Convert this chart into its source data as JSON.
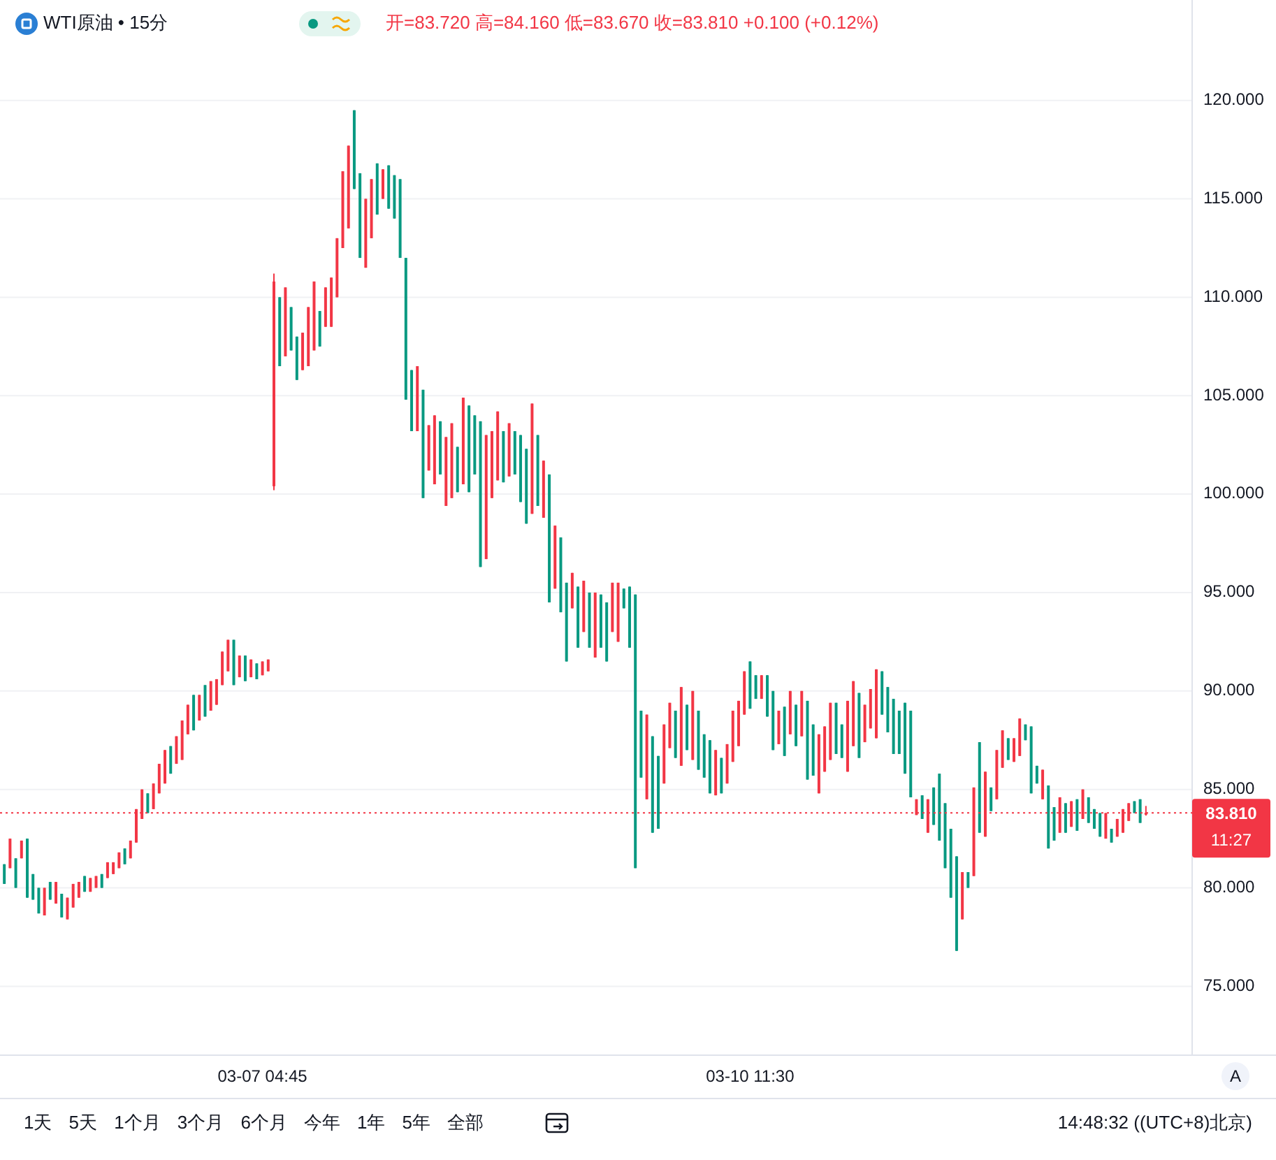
{
  "chart_data": {
    "type": "candlestick",
    "title": "WTI原油 • 15分",
    "subtitle": "开=83.720 高=84.160 低=83.670 收=83.810 +0.100 (+0.12%)",
    "categories": [
      null,
      null,
      null,
      null,
      null,
      null,
      null,
      null,
      null,
      null,
      null,
      null,
      null,
      null,
      null,
      null,
      null,
      null,
      null,
      null,
      null,
      null,
      null,
      null,
      null,
      null,
      null,
      null,
      null,
      null,
      null,
      null,
      null,
      null,
      null,
      null,
      null,
      null,
      null,
      null,
      null,
      null,
      null,
      null,
      null,
      "03-07 04:45",
      null,
      null,
      null,
      null,
      null,
      null,
      null,
      null,
      null,
      null,
      null,
      null,
      null,
      null,
      null,
      null,
      null,
      null,
      null,
      null,
      null,
      null,
      null,
      null,
      null,
      null,
      null,
      null,
      null,
      null,
      null,
      null,
      null,
      null,
      null,
      null,
      null,
      null,
      null,
      null,
      null,
      null,
      null,
      null,
      null,
      null,
      null,
      null,
      null,
      null,
      null,
      null,
      null,
      null,
      null,
      null,
      null,
      null,
      null,
      null,
      null,
      null,
      null,
      null,
      null,
      null,
      null,
      null,
      null,
      null,
      null,
      null,
      null,
      null,
      null,
      null,
      null,
      null,
      null,
      null,
      null,
      null,
      null,
      null,
      "03-10 11:30",
      null,
      null,
      null,
      null,
      null,
      null,
      null,
      null,
      null,
      null,
      null,
      null,
      null,
      null,
      null,
      null,
      null,
      null,
      null,
      null,
      null,
      null,
      null,
      null,
      null,
      null,
      null,
      null,
      null,
      null,
      null,
      null,
      null,
      null,
      null,
      null,
      null,
      null,
      null,
      null,
      null,
      null,
      null,
      null,
      null,
      null,
      null,
      null,
      null,
      null,
      null,
      null,
      null,
      null,
      null,
      null,
      null,
      null,
      null,
      null,
      null,
      null,
      null,
      null,
      null,
      null,
      null,
      null,
      null
    ],
    "ohlc": [
      [
        81.2,
        81.2,
        80.2,
        80.2
      ],
      [
        81,
        82.5,
        81,
        82.5
      ],
      [
        81.5,
        81.5,
        80,
        80
      ],
      [
        81.5,
        82.4,
        81.5,
        82.4
      ],
      [
        82.5,
        82.5,
        79.5,
        79.5
      ],
      [
        80.7,
        80.7,
        79.4,
        79.4
      ],
      [
        80,
        80,
        78.7,
        78.7
      ],
      [
        78.6,
        80,
        78.6,
        80
      ],
      [
        80.3,
        80.3,
        79.4,
        79.4
      ],
      [
        79.2,
        80.3,
        79.2,
        80.3
      ],
      [
        79.7,
        79.7,
        78.5,
        78.5
      ],
      [
        78.4,
        79.5,
        78.4,
        79.5
      ],
      [
        79,
        80.2,
        79,
        80.2
      ],
      [
        79.5,
        80.3,
        79.5,
        80.3
      ],
      [
        80.6,
        80.6,
        79.8,
        79.8
      ],
      [
        79.8,
        80.5,
        79.8,
        80.5
      ],
      [
        80,
        80.6,
        80,
        80.6
      ],
      [
        80.7,
        80.7,
        80,
        80
      ],
      [
        80.5,
        81.3,
        80.5,
        81.3
      ],
      [
        80.7,
        81.3,
        80.7,
        81.3
      ],
      [
        81,
        81.8,
        81,
        81.8
      ],
      [
        82,
        82,
        81.2,
        81.2
      ],
      [
        81.5,
        82.4,
        81.5,
        82.4
      ],
      [
        82.3,
        84,
        82.3,
        84
      ],
      [
        83.5,
        85,
        83.5,
        85
      ],
      [
        84.8,
        84.8,
        83.8,
        83.8
      ],
      [
        84,
        85.3,
        84,
        85.3
      ],
      [
        84.8,
        86.3,
        84.8,
        86.3
      ],
      [
        85.3,
        87,
        85.3,
        87
      ],
      [
        87.2,
        87.2,
        85.8,
        85.8
      ],
      [
        86.3,
        87.7,
        86.3,
        87.7
      ],
      [
        86.5,
        88.5,
        86.5,
        88.5
      ],
      [
        87.8,
        89.3,
        87.8,
        89.3
      ],
      [
        89.8,
        89.8,
        88,
        88
      ],
      [
        88.5,
        89.8,
        88.5,
        89.8
      ],
      [
        90.3,
        90.3,
        88.7,
        88.7
      ],
      [
        89,
        90.5,
        89,
        90.5
      ],
      [
        89.3,
        90.6,
        89.3,
        90.6
      ],
      [
        90.3,
        92,
        90.3,
        92
      ],
      [
        91,
        92.6,
        91,
        92.6
      ],
      [
        92.6,
        92.6,
        90.3,
        90.3
      ],
      [
        90.7,
        91.8,
        90.7,
        91.8
      ],
      [
        91.8,
        91.8,
        90.5,
        90.5
      ],
      [
        90.7,
        91.6,
        90.7,
        91.6
      ],
      [
        91.4,
        91.4,
        90.6,
        90.6
      ],
      [
        90.8,
        91.5,
        90.8,
        91.5
      ],
      [
        91,
        91.6,
        91,
        91.6
      ],
      [
        100.4,
        111.2,
        100.2,
        110.8
      ],
      [
        110,
        110,
        106.5,
        106.5
      ],
      [
        107,
        110.5,
        107,
        110.5
      ],
      [
        109.5,
        109.5,
        107.3,
        107.3
      ],
      [
        108,
        108,
        105.8,
        105.8
      ],
      [
        106.3,
        108.2,
        106.3,
        108.2
      ],
      [
        106.5,
        109.5,
        106.5,
        109.5
      ],
      [
        107.3,
        110.8,
        107.3,
        110.8
      ],
      [
        109.3,
        109.3,
        107.5,
        107.5
      ],
      [
        108.5,
        110.5,
        108.5,
        110.5
      ],
      [
        108.5,
        111,
        108.5,
        111
      ],
      [
        110,
        113,
        110,
        113
      ],
      [
        112.5,
        116.4,
        112.5,
        116.4
      ],
      [
        113.5,
        117.7,
        113.5,
        117.7
      ],
      [
        119.5,
        119.5,
        115.5,
        115.5
      ],
      [
        116.3,
        116.3,
        112,
        112
      ],
      [
        111.5,
        115,
        111.5,
        115
      ],
      [
        113,
        116,
        113,
        116
      ],
      [
        116.8,
        116.8,
        114.2,
        114.2
      ],
      [
        115,
        116.5,
        115,
        116.5
      ],
      [
        116.7,
        116.7,
        114.5,
        114.5
      ],
      [
        116.2,
        116.2,
        114,
        114
      ],
      [
        116,
        116,
        112,
        112
      ],
      [
        112,
        112,
        104.8,
        104.8
      ],
      [
        106.3,
        106.3,
        103.2,
        103.2
      ],
      [
        103.2,
        106.5,
        103.2,
        106.5
      ],
      [
        105.3,
        105.3,
        99.8,
        99.8
      ],
      [
        101.2,
        103.5,
        101.2,
        103.5
      ],
      [
        100.5,
        104,
        100.5,
        104
      ],
      [
        103.7,
        103.7,
        101,
        101
      ],
      [
        99.4,
        102.9,
        99.4,
        102.9
      ],
      [
        99.8,
        103.6,
        99.8,
        103.6
      ],
      [
        102.4,
        102.4,
        100.1,
        100.1
      ],
      [
        100.5,
        104.9,
        100.5,
        104.9
      ],
      [
        104.5,
        104.5,
        100.1,
        100.1
      ],
      [
        104,
        104,
        101,
        101
      ],
      [
        103.7,
        103.7,
        96.3,
        96.3
      ],
      [
        96.7,
        103,
        96.7,
        103
      ],
      [
        99.8,
        103.2,
        99.8,
        103.2
      ],
      [
        100.7,
        104.2,
        100.7,
        104.2
      ],
      [
        103.2,
        103.2,
        100.6,
        100.6
      ],
      [
        100.9,
        103.6,
        100.9,
        103.6
      ],
      [
        103.2,
        103.2,
        101,
        101
      ],
      [
        103,
        103,
        99.6,
        99.6
      ],
      [
        102.3,
        102.3,
        98.5,
        98.5
      ],
      [
        99,
        104.6,
        99,
        104.6
      ],
      [
        103,
        103,
        99.4,
        99.4
      ],
      [
        98.8,
        101.7,
        98.8,
        101.7
      ],
      [
        101,
        101,
        94.5,
        94.5
      ],
      [
        95.2,
        98.4,
        95.2,
        98.4
      ],
      [
        97.8,
        97.8,
        94,
        94
      ],
      [
        95.5,
        95.5,
        91.5,
        91.5
      ],
      [
        94.2,
        96,
        94.2,
        96
      ],
      [
        95.3,
        95.3,
        92.2,
        92.2
      ],
      [
        93,
        95.6,
        93,
        95.6
      ],
      [
        95,
        95,
        92.2,
        92.2
      ],
      [
        91.7,
        95,
        91.7,
        95
      ],
      [
        94.9,
        94.9,
        92.2,
        92.2
      ],
      [
        94.5,
        94.5,
        91.5,
        91.5
      ],
      [
        93,
        95.5,
        93,
        95.5
      ],
      [
        92.5,
        95.5,
        92.5,
        95.5
      ],
      [
        95.2,
        95.2,
        94.2,
        94.2
      ],
      [
        95.3,
        95.3,
        92.2,
        92.2
      ],
      [
        94.9,
        94.9,
        81,
        81
      ],
      [
        89,
        89,
        85.6,
        85.6
      ],
      [
        84.5,
        88.8,
        84.5,
        88.8
      ],
      [
        87.7,
        87.7,
        82.8,
        82.8
      ],
      [
        86.7,
        86.7,
        83,
        83
      ],
      [
        85.3,
        88.3,
        85.3,
        88.3
      ],
      [
        87.1,
        89.4,
        87.1,
        89.4
      ],
      [
        89,
        89,
        86.6,
        86.6
      ],
      [
        86.2,
        90.2,
        86.2,
        90.2
      ],
      [
        89.3,
        89.3,
        87,
        87
      ],
      [
        86.5,
        90,
        86.5,
        90
      ],
      [
        89,
        89,
        86,
        86
      ],
      [
        87.8,
        87.8,
        85.6,
        85.6
      ],
      [
        87.5,
        87.5,
        84.8,
        84.8
      ],
      [
        84.7,
        87,
        84.7,
        87
      ],
      [
        86.6,
        86.6,
        84.8,
        84.8
      ],
      [
        85.3,
        87.3,
        85.3,
        87.3
      ],
      [
        86.4,
        89,
        86.4,
        89
      ],
      [
        87.2,
        89.5,
        87.2,
        89.5
      ],
      [
        88.8,
        91,
        88.8,
        91
      ],
      [
        91.5,
        91.5,
        89.1,
        89.1
      ],
      [
        90.8,
        90.8,
        89.6,
        89.6
      ],
      [
        89.6,
        90.8,
        89.6,
        90.8
      ],
      [
        90.8,
        90.8,
        88.7,
        88.7
      ],
      [
        90,
        90,
        87,
        87
      ],
      [
        87.3,
        89,
        87.3,
        89
      ],
      [
        89.2,
        89.2,
        86.7,
        86.7
      ],
      [
        87.8,
        90,
        87.8,
        90
      ],
      [
        89.3,
        89.3,
        87.2,
        87.2
      ],
      [
        87.7,
        90,
        87.7,
        90
      ],
      [
        89.5,
        89.5,
        85.5,
        85.5
      ],
      [
        88.3,
        88.3,
        85.7,
        85.7
      ],
      [
        84.8,
        87.8,
        84.8,
        87.8
      ],
      [
        85.9,
        88.2,
        85.9,
        88.2
      ],
      [
        86.5,
        89.4,
        86.5,
        89.4
      ],
      [
        89.4,
        89.4,
        86.8,
        86.8
      ],
      [
        88.3,
        88.3,
        86.6,
        86.6
      ],
      [
        85.9,
        89.5,
        85.9,
        89.5
      ],
      [
        87.2,
        90.5,
        87.2,
        90.5
      ],
      [
        89.9,
        89.9,
        86.6,
        86.6
      ],
      [
        87.4,
        89.3,
        87.4,
        89.3
      ],
      [
        88.1,
        90.1,
        88.1,
        90.1
      ],
      [
        87.6,
        91.1,
        87.6,
        91.1
      ],
      [
        91,
        91,
        88.8,
        88.8
      ],
      [
        90.2,
        90.2,
        87.9,
        87.9
      ],
      [
        89.6,
        89.6,
        86.8,
        86.8
      ],
      [
        89,
        89,
        86.8,
        86.8
      ],
      [
        89.4,
        89.4,
        85.8,
        85.8
      ],
      [
        89,
        89,
        84.6,
        84.6
      ],
      [
        83.7,
        84.5,
        83.7,
        84.5
      ],
      [
        84.7,
        84.7,
        83.5,
        83.5
      ],
      [
        82.8,
        84.5,
        82.8,
        84.5
      ],
      [
        85.1,
        85.1,
        83.2,
        83.2
      ],
      [
        85.8,
        85.8,
        82.4,
        82.4
      ],
      [
        84.3,
        84.3,
        81,
        81
      ],
      [
        83,
        83,
        79.5,
        79.5
      ],
      [
        81.6,
        81.6,
        76.8,
        76.8
      ],
      [
        78.4,
        80.8,
        78.4,
        80.8
      ],
      [
        80.8,
        80.8,
        80,
        80
      ],
      [
        80.6,
        85.1,
        80.6,
        85.1
      ],
      [
        87.4,
        87.4,
        82.8,
        82.8
      ],
      [
        82.6,
        85.9,
        82.6,
        85.9
      ],
      [
        85.1,
        85.1,
        83.9,
        83.9
      ],
      [
        84.5,
        87,
        84.5,
        87
      ],
      [
        86.1,
        88,
        86.1,
        88
      ],
      [
        87.6,
        87.6,
        86.5,
        86.5
      ],
      [
        86.4,
        87.6,
        86.4,
        87.6
      ],
      [
        86.7,
        88.6,
        86.7,
        88.6
      ],
      [
        88.3,
        88.3,
        87.5,
        87.5
      ],
      [
        88.2,
        88.2,
        84.8,
        84.8
      ],
      [
        86.2,
        86.2,
        85.3,
        85.3
      ],
      [
        84.5,
        86,
        84.5,
        86
      ],
      [
        85.2,
        85.2,
        82,
        82
      ],
      [
        84.1,
        84.1,
        82.4,
        82.4
      ],
      [
        82.8,
        84.6,
        82.8,
        84.6
      ],
      [
        84.3,
        84.3,
        82.8,
        82.8
      ],
      [
        83.1,
        84.4,
        83.1,
        84.4
      ],
      [
        84.5,
        84.5,
        82.9,
        82.9
      ],
      [
        83.5,
        85,
        83.5,
        85
      ],
      [
        84.6,
        84.6,
        83.3,
        83.3
      ],
      [
        84,
        84,
        83,
        83
      ],
      [
        83.8,
        83.8,
        82.6,
        82.6
      ],
      [
        82.5,
        83.8,
        82.5,
        83.8
      ],
      [
        83,
        83,
        82.3,
        82.3
      ],
      [
        82.6,
        83.5,
        82.6,
        83.5
      ],
      [
        82.8,
        84,
        82.8,
        84
      ],
      [
        83.4,
        84.3,
        83.4,
        84.3
      ],
      [
        84.4,
        84.4,
        83.8,
        83.8
      ],
      [
        84.5,
        84.5,
        83.3,
        83.3
      ],
      [
        83.72,
        84.16,
        83.67,
        83.81
      ]
    ],
    "colors": [
      "#089981",
      "#f23645",
      "#089981",
      "#f23645",
      "#089981",
      "#089981",
      "#089981",
      "#f23645",
      "#089981",
      "#f23645",
      "#089981",
      "#f23645",
      "#f23645",
      "#f23645",
      "#089981",
      "#f23645",
      "#f23645",
      "#089981",
      "#f23645",
      "#f23645",
      "#f23645",
      "#089981",
      "#f23645",
      "#f23645",
      "#f23645",
      "#089981",
      "#f23645",
      "#f23645",
      "#f23645",
      "#089981",
      "#f23645",
      "#f23645",
      "#f23645",
      "#089981",
      "#f23645",
      "#089981",
      "#f23645",
      "#f23645",
      "#f23645",
      "#f23645",
      "#089981",
      "#f23645",
      "#089981",
      "#f23645",
      "#089981",
      "#f23645",
      "#f23645",
      "#f23645",
      "#089981",
      "#f23645",
      "#089981",
      "#089981",
      "#f23645",
      "#f23645",
      "#f23645",
      "#089981",
      "#f23645",
      "#f23645",
      "#f23645",
      "#f23645",
      "#f23645",
      "#089981",
      "#089981",
      "#f23645",
      "#f23645",
      "#089981",
      "#f23645",
      "#089981",
      "#089981",
      "#089981",
      "#089981",
      "#089981",
      "#f23645",
      "#089981",
      "#f23645",
      "#f23645",
      "#089981",
      "#f23645",
      "#f23645",
      "#089981",
      "#f23645",
      "#089981",
      "#089981",
      "#089981",
      "#f23645",
      "#f23645",
      "#f23645",
      "#089981",
      "#f23645",
      "#089981",
      "#089981",
      "#089981",
      "#f23645",
      "#089981",
      "#f23645",
      "#089981",
      "#f23645",
      "#089981",
      "#089981",
      "#f23645",
      "#089981",
      "#f23645",
      "#089981",
      "#f23645",
      "#089981",
      "#089981",
      "#f23645",
      "#f23645",
      "#089981",
      "#089981",
      "#089981",
      "#089981",
      "#f23645",
      "#089981",
      "#089981",
      "#f23645",
      "#f23645",
      "#089981",
      "#f23645",
      "#089981",
      "#f23645",
      "#089981",
      "#089981",
      "#089981",
      "#f23645",
      "#089981",
      "#f23645",
      "#f23645",
      "#f23645",
      "#f23645",
      "#089981",
      "#089981",
      "#f23645",
      "#089981",
      "#089981",
      "#f23645",
      "#089981",
      "#f23645",
      "#089981",
      "#f23645",
      "#089981",
      "#089981",
      "#f23645",
      "#f23645",
      "#f23645",
      "#089981",
      "#089981",
      "#f23645",
      "#f23645",
      "#089981",
      "#f23645",
      "#f23645",
      "#f23645",
      "#089981",
      "#089981",
      "#089981",
      "#089981",
      "#089981",
      "#089981",
      "#f23645",
      "#089981",
      "#f23645",
      "#089981",
      "#089981",
      "#089981",
      "#089981",
      "#089981",
      "#f23645",
      "#089981",
      "#f23645",
      "#089981",
      "#f23645",
      "#089981",
      "#f23645",
      "#f23645",
      "#089981",
      "#f23645",
      "#f23645",
      "#089981",
      "#089981",
      "#089981",
      "#f23645",
      "#089981",
      "#089981",
      "#f23645",
      "#089981",
      "#f23645",
      "#089981",
      "#f23645",
      "#089981",
      "#089981",
      "#089981",
      "#f23645",
      "#089981",
      "#f23645",
      "#f23645",
      "#f23645",
      "#089981",
      "#089981",
      "#f23645"
    ],
    "ylim": [
      71.5,
      125.1
    ],
    "yticks": [
      {
        "value": 75,
        "label": "75.000"
      },
      {
        "value": 80,
        "label": "80.000"
      },
      {
        "value": 85,
        "label": "85.000"
      },
      {
        "value": 90,
        "label": "90.000"
      },
      {
        "value": 95,
        "label": "95.000"
      },
      {
        "value": 100,
        "label": "100.000"
      },
      {
        "value": 105,
        "label": "105.000"
      },
      {
        "value": 110,
        "label": "110.000"
      },
      {
        "value": 115,
        "label": "115.000"
      },
      {
        "value": 120,
        "label": "120.000"
      }
    ],
    "grid": "y",
    "ref_lines": [
      {
        "axis": "y",
        "value": 83.81,
        "label": "83.810",
        "color": "#f23645",
        "line_style": "dotted"
      }
    ],
    "annotations": [
      "11:27",
      "1天",
      "5天",
      "1个月",
      "3个月",
      "6个月",
      "今年",
      "1年",
      "5年",
      "全部",
      "14:48:32 ((UTC+8)北京)",
      "A"
    ]
  }
}
